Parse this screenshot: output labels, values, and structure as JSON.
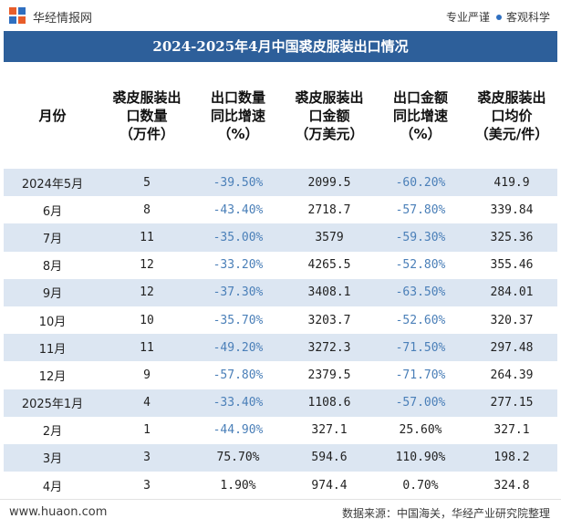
{
  "header": {
    "brand": "华经情报网",
    "tagline_left": "专业严谨",
    "tagline_right": "客观科学"
  },
  "title": "2024-2025年4月中国裘皮服装出口情况",
  "columns": [
    "月份",
    "裘皮服装出口数量（万件）",
    "出口数量同比增速（%）",
    "裘皮服装出口金额（万美元）",
    "出口金额同比增速（%）",
    "裘皮服装出口均价（美元/件）"
  ],
  "column_lines": [
    [
      "月份"
    ],
    [
      "裘皮服装出",
      "口数量",
      "（万件）"
    ],
    [
      "出口数量",
      "同比增速",
      "（%）"
    ],
    [
      "裘皮服装出",
      "口金额",
      "（万美元）"
    ],
    [
      "出口金额",
      "同比增速",
      "（%）"
    ],
    [
      "裘皮服装出",
      "口均价",
      "（美元/件）"
    ]
  ],
  "rows": [
    [
      "2024年5月",
      "5",
      "-39.50%",
      "2099.5",
      "-60.20%",
      "419.9"
    ],
    [
      "6月",
      "8",
      "-43.40%",
      "2718.7",
      "-57.80%",
      "339.84"
    ],
    [
      "7月",
      "11",
      "-35.00%",
      "3579",
      "-59.30%",
      "325.36"
    ],
    [
      "8月",
      "12",
      "-33.20%",
      "4265.5",
      "-52.80%",
      "355.46"
    ],
    [
      "9月",
      "12",
      "-37.30%",
      "3408.1",
      "-63.50%",
      "284.01"
    ],
    [
      "10月",
      "10",
      "-35.70%",
      "3203.7",
      "-52.60%",
      "320.37"
    ],
    [
      "11月",
      "11",
      "-49.20%",
      "3272.3",
      "-71.50%",
      "297.48"
    ],
    [
      "12月",
      "9",
      "-57.80%",
      "2379.5",
      "-71.70%",
      "264.39"
    ],
    [
      "2025年1月",
      "4",
      "-33.40%",
      "1108.6",
      "-57.00%",
      "277.15"
    ],
    [
      "2月",
      "1",
      "-44.90%",
      "327.1",
      "25.60%",
      "327.1"
    ],
    [
      "3月",
      "3",
      "75.70%",
      "594.6",
      "110.90%",
      "198.2"
    ],
    [
      "4月",
      "3",
      "1.90%",
      "974.4",
      "0.70%",
      "324.8"
    ]
  ],
  "footer": {
    "site": "www.huaon.com",
    "source": "数据来源：中国海关，华经产业研究院整理"
  },
  "colors": {
    "title_bg": "#2d5f9a",
    "stripe": "#dce6f2",
    "negative": "#4a7fb8"
  }
}
